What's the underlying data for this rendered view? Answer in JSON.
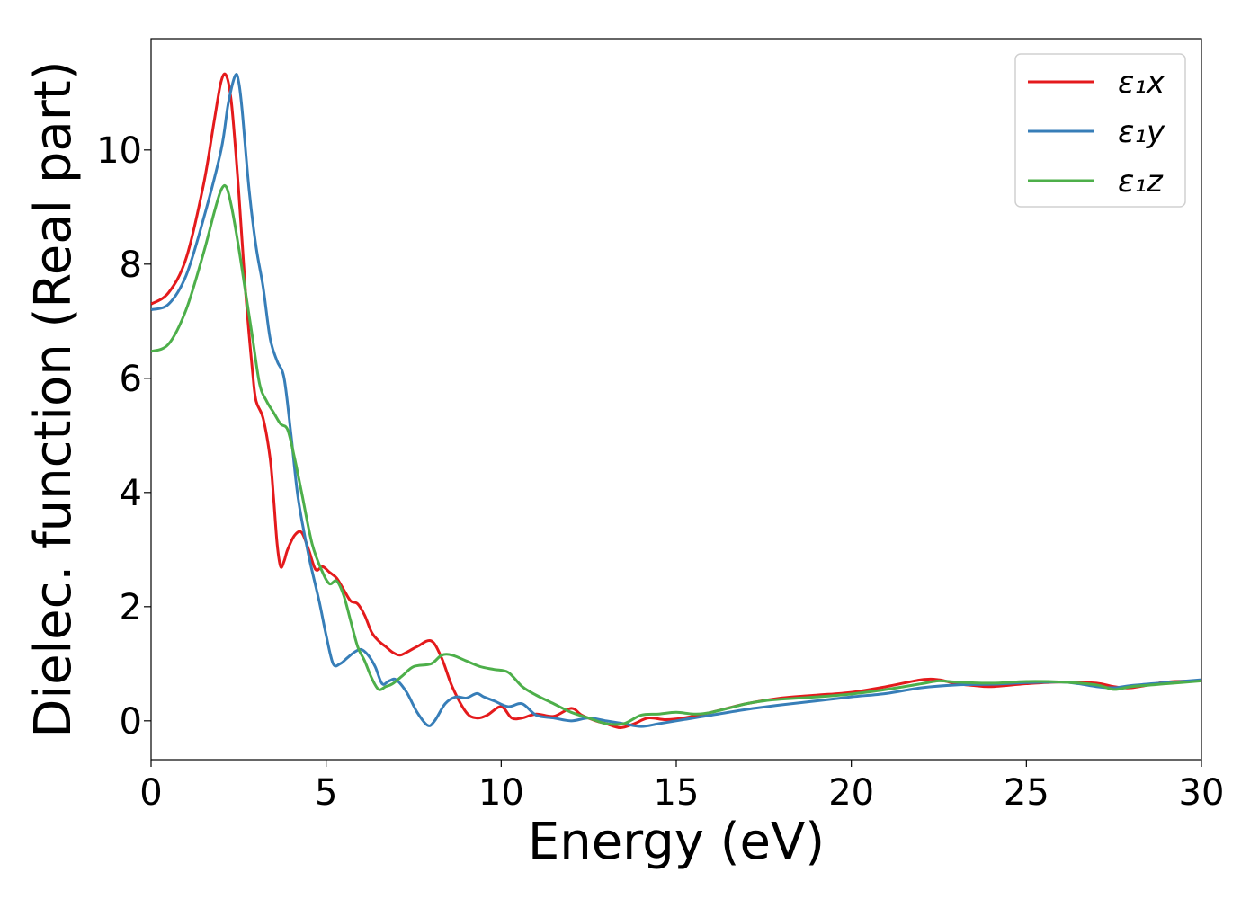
{
  "chart_data": {
    "type": "line",
    "title": "",
    "xlabel": "Energy (eV)",
    "ylabel": "Dielec. function (Real part)",
    "xlim": [
      0,
      30
    ],
    "ylim": [
      -0.68,
      11.95
    ],
    "xticks": [
      0,
      5,
      10,
      15,
      20,
      25,
      30
    ],
    "yticks": [
      0,
      2,
      4,
      6,
      8,
      10
    ],
    "grid": false,
    "legend_position": "top-right",
    "series": [
      {
        "name": "ε₁x",
        "color": "#e41a1c",
        "x": [
          0,
          0.5,
          1.0,
          1.5,
          1.8,
          2.0,
          2.15,
          2.3,
          2.5,
          2.7,
          2.9,
          3.0,
          3.2,
          3.4,
          3.5,
          3.6,
          3.7,
          3.8,
          3.9,
          4.1,
          4.3,
          4.5,
          4.7,
          4.9,
          5.1,
          5.3,
          5.5,
          5.7,
          5.9,
          6.1,
          6.3,
          6.5,
          6.7,
          6.9,
          7.1,
          7.3,
          7.6,
          8.0,
          8.3,
          8.6,
          9.0,
          9.3,
          9.6,
          10.0,
          10.3,
          10.6,
          11.0,
          11.5,
          12.0,
          12.3,
          12.7,
          13.0,
          13.4,
          13.8,
          14.2,
          14.7,
          15.2,
          16.0,
          17.0,
          18.0,
          19.0,
          20.0,
          21.0,
          22.0,
          22.5,
          23.0,
          23.5,
          24.0,
          25.0,
          26.0,
          27.0,
          27.5,
          28.0,
          29.0,
          30.0
        ],
        "y": [
          7.3,
          7.5,
          8.1,
          9.4,
          10.5,
          11.2,
          11.3,
          10.8,
          9.3,
          7.5,
          6.1,
          5.6,
          5.3,
          4.6,
          3.9,
          3.1,
          2.7,
          2.8,
          3.0,
          3.25,
          3.3,
          3.0,
          2.65,
          2.7,
          2.6,
          2.5,
          2.3,
          2.1,
          2.05,
          1.85,
          1.55,
          1.4,
          1.3,
          1.2,
          1.15,
          1.2,
          1.3,
          1.4,
          1.1,
          0.6,
          0.15,
          0.05,
          0.1,
          0.25,
          0.05,
          0.05,
          0.12,
          0.08,
          0.22,
          0.1,
          0.0,
          -0.05,
          -0.12,
          -0.05,
          0.05,
          0.02,
          0.05,
          0.15,
          0.3,
          0.4,
          0.45,
          0.5,
          0.6,
          0.72,
          0.72,
          0.65,
          0.62,
          0.6,
          0.65,
          0.68,
          0.66,
          0.6,
          0.58,
          0.68,
          0.7
        ]
      },
      {
        "name": "ε₁y",
        "color": "#377eb8",
        "x": [
          0,
          0.5,
          1.0,
          1.5,
          2.0,
          2.2,
          2.4,
          2.5,
          2.6,
          2.8,
          3.0,
          3.2,
          3.4,
          3.6,
          3.8,
          4.0,
          4.2,
          4.5,
          4.8,
          5.0,
          5.2,
          5.4,
          5.6,
          5.8,
          6.0,
          6.2,
          6.4,
          6.6,
          6.8,
          7.0,
          7.3,
          7.6,
          7.9,
          8.1,
          8.4,
          8.7,
          9.0,
          9.3,
          9.5,
          9.8,
          10.2,
          10.6,
          11.0,
          11.5,
          12.0,
          12.5,
          13.0,
          13.5,
          14.0,
          14.5,
          15.0,
          15.5,
          16.0,
          17.0,
          18.0,
          19.0,
          20.0,
          21.0,
          22.0,
          23.0,
          24.0,
          25.0,
          26.0,
          26.5,
          27.0,
          27.5,
          28.0,
          29.0,
          30.0
        ],
        "y": [
          7.2,
          7.3,
          7.8,
          8.8,
          10.0,
          10.8,
          11.3,
          11.2,
          10.7,
          9.3,
          8.3,
          7.6,
          6.7,
          6.3,
          6.0,
          5.0,
          3.9,
          2.9,
          2.1,
          1.5,
          1.0,
          1.0,
          1.1,
          1.2,
          1.25,
          1.15,
          0.95,
          0.65,
          0.7,
          0.72,
          0.5,
          0.15,
          -0.08,
          0.0,
          0.3,
          0.42,
          0.4,
          0.48,
          0.42,
          0.35,
          0.25,
          0.3,
          0.1,
          0.05,
          0.0,
          0.05,
          0.0,
          -0.05,
          -0.1,
          -0.05,
          0.0,
          0.05,
          0.1,
          0.2,
          0.28,
          0.35,
          0.42,
          0.48,
          0.58,
          0.63,
          0.64,
          0.67,
          0.68,
          0.65,
          0.6,
          0.58,
          0.62,
          0.67,
          0.72
        ]
      },
      {
        "name": "ε₁z",
        "color": "#4daf4a",
        "x": [
          0,
          0.5,
          1.0,
          1.5,
          1.8,
          2.0,
          2.15,
          2.3,
          2.5,
          2.7,
          2.9,
          3.1,
          3.3,
          3.5,
          3.7,
          3.9,
          4.1,
          4.3,
          4.6,
          4.9,
          5.1,
          5.3,
          5.5,
          5.7,
          5.9,
          6.1,
          6.3,
          6.5,
          6.7,
          6.9,
          7.2,
          7.5,
          8.0,
          8.3,
          8.6,
          9.0,
          9.4,
          9.8,
          10.2,
          10.6,
          11.0,
          11.5,
          12.0,
          12.5,
          13.0,
          13.5,
          14.0,
          14.5,
          15.0,
          15.5,
          16.0,
          17.0,
          17.5,
          18.0,
          19.0,
          20.0,
          21.0,
          22.0,
          22.5,
          23.0,
          24.0,
          25.0,
          26.0,
          27.0,
          27.5,
          28.0,
          29.0,
          30.0
        ],
        "y": [
          6.47,
          6.6,
          7.2,
          8.2,
          8.9,
          9.3,
          9.35,
          9.0,
          8.3,
          7.5,
          6.7,
          5.9,
          5.6,
          5.4,
          5.2,
          5.1,
          4.6,
          4.0,
          3.1,
          2.6,
          2.4,
          2.45,
          2.2,
          1.75,
          1.3,
          1.05,
          0.75,
          0.55,
          0.6,
          0.65,
          0.8,
          0.95,
          1.0,
          1.15,
          1.15,
          1.05,
          0.95,
          0.9,
          0.85,
          0.6,
          0.45,
          0.3,
          0.15,
          0.05,
          -0.05,
          -0.05,
          0.1,
          0.12,
          0.15,
          0.12,
          0.15,
          0.3,
          0.35,
          0.38,
          0.42,
          0.47,
          0.55,
          0.65,
          0.7,
          0.68,
          0.66,
          0.69,
          0.68,
          0.63,
          0.55,
          0.6,
          0.65,
          0.7
        ]
      }
    ]
  }
}
